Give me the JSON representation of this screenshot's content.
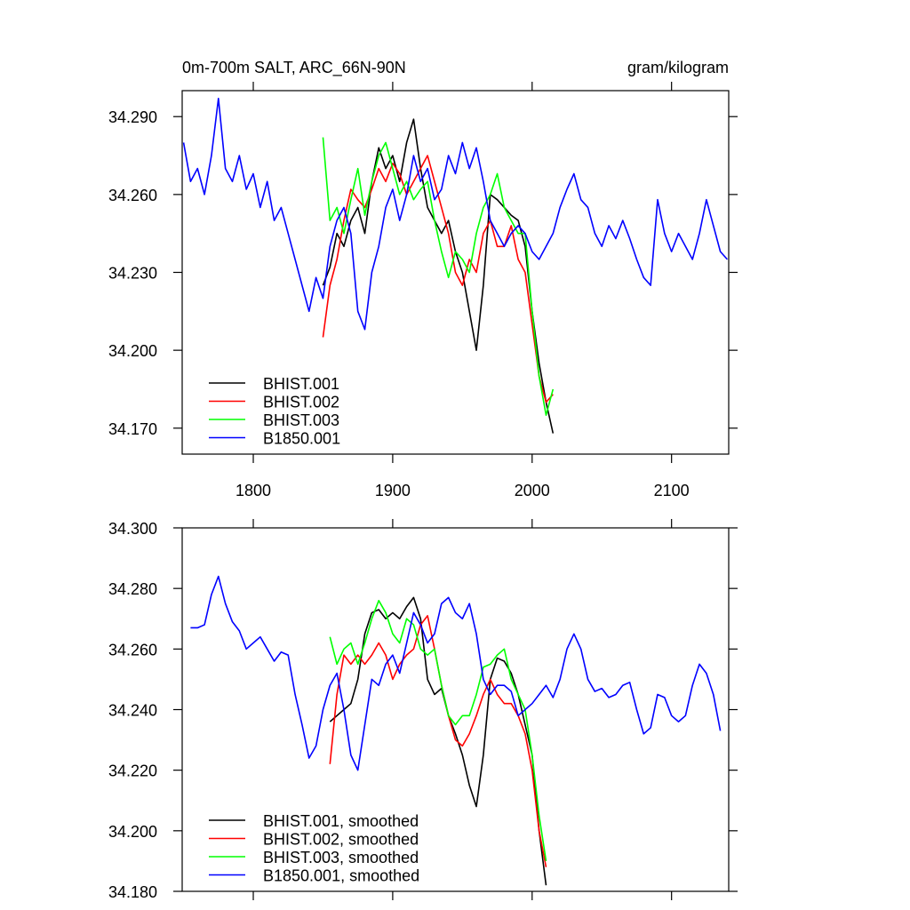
{
  "chart_data": [
    {
      "type": "line",
      "title": "0m-700m SALT, ARC_66N-90N",
      "units": "gram/kilogram",
      "xlim": [
        1749,
        2141
      ],
      "xticks": [
        1800,
        1900,
        2000,
        2100
      ],
      "show_xtick_labels": true,
      "ylim": [
        34.16,
        34.3
      ],
      "yticks": [
        {
          "value": 34.17,
          "label": "34.170"
        },
        {
          "value": 34.2,
          "label": "34.200"
        },
        {
          "value": 34.23,
          "label": "34.230"
        },
        {
          "value": 34.26,
          "label": "34.260"
        },
        {
          "value": 34.29,
          "label": "34.290"
        }
      ],
      "legend": "lower left",
      "series": [
        {
          "name": "BHIST.001",
          "color": "#000000",
          "x": [
            1850,
            1855,
            1860,
            1865,
            1870,
            1875,
            1880,
            1885,
            1890,
            1895,
            1900,
            1905,
            1910,
            1915,
            1920,
            1925,
            1930,
            1935,
            1940,
            1945,
            1950,
            1955,
            1960,
            1965,
            1970,
            1975,
            1980,
            1985,
            1990,
            1995,
            2000,
            2005,
            2010,
            2015
          ],
          "values": [
            34.225,
            34.232,
            34.245,
            34.24,
            34.25,
            34.255,
            34.245,
            34.265,
            34.278,
            34.27,
            34.275,
            34.265,
            34.28,
            34.289,
            34.27,
            34.255,
            34.25,
            34.245,
            34.25,
            34.238,
            34.23,
            34.215,
            34.2,
            34.225,
            34.26,
            34.258,
            34.255,
            34.252,
            34.25,
            34.24,
            34.215,
            34.195,
            34.18,
            34.168
          ]
        },
        {
          "name": "BHIST.002",
          "color": "#ff0000",
          "x": [
            1850,
            1855,
            1860,
            1865,
            1870,
            1875,
            1880,
            1885,
            1890,
            1895,
            1900,
            1905,
            1910,
            1915,
            1920,
            1925,
            1930,
            1935,
            1940,
            1945,
            1950,
            1955,
            1960,
            1965,
            1970,
            1975,
            1980,
            1985,
            1990,
            1995,
            2000,
            2005,
            2010,
            2015
          ],
          "values": [
            34.205,
            34.225,
            34.235,
            34.25,
            34.262,
            34.258,
            34.255,
            34.262,
            34.27,
            34.265,
            34.272,
            34.268,
            34.26,
            34.265,
            34.27,
            34.275,
            34.265,
            34.255,
            34.245,
            34.23,
            34.225,
            34.235,
            34.23,
            34.245,
            34.25,
            34.24,
            34.24,
            34.248,
            34.235,
            34.23,
            34.21,
            34.19,
            34.18,
            34.183
          ]
        },
        {
          "name": "BHIST.003",
          "color": "#00ff00",
          "x": [
            1850,
            1855,
            1860,
            1865,
            1870,
            1875,
            1880,
            1885,
            1890,
            1895,
            1900,
            1905,
            1910,
            1915,
            1920,
            1925,
            1930,
            1935,
            1940,
            1945,
            1950,
            1955,
            1960,
            1965,
            1970,
            1975,
            1980,
            1985,
            1990,
            1995,
            2000,
            2005,
            2010,
            2015
          ],
          "values": [
            34.282,
            34.25,
            34.255,
            34.245,
            34.258,
            34.27,
            34.252,
            34.265,
            34.275,
            34.28,
            34.27,
            34.26,
            34.265,
            34.258,
            34.262,
            34.265,
            34.25,
            34.238,
            34.228,
            34.238,
            34.235,
            34.23,
            34.245,
            34.255,
            34.26,
            34.268,
            34.255,
            34.25,
            34.245,
            34.245,
            34.215,
            34.19,
            34.175,
            34.185
          ]
        },
        {
          "name": "B1850.001",
          "color": "#0000ff",
          "x": [
            1750,
            1755,
            1760,
            1765,
            1770,
            1775,
            1780,
            1785,
            1790,
            1795,
            1800,
            1805,
            1810,
            1815,
            1820,
            1825,
            1830,
            1835,
            1840,
            1845,
            1850,
            1855,
            1860,
            1865,
            1870,
            1875,
            1880,
            1885,
            1890,
            1895,
            1900,
            1905,
            1910,
            1915,
            1920,
            1925,
            1930,
            1935,
            1940,
            1945,
            1950,
            1955,
            1960,
            1965,
            1970,
            1975,
            1980,
            1985,
            1990,
            1995,
            2000,
            2005,
            2010,
            2015,
            2020,
            2025,
            2030,
            2035,
            2040,
            2045,
            2050,
            2055,
            2060,
            2065,
            2070,
            2075,
            2080,
            2085,
            2090,
            2095,
            2100,
            2105,
            2110,
            2115,
            2120,
            2125,
            2130,
            2135,
            2140
          ],
          "values": [
            34.28,
            34.265,
            34.27,
            34.26,
            34.275,
            34.297,
            34.27,
            34.265,
            34.275,
            34.262,
            34.268,
            34.255,
            34.265,
            34.25,
            34.255,
            34.245,
            34.235,
            34.225,
            34.215,
            34.228,
            34.22,
            34.24,
            34.25,
            34.255,
            34.245,
            34.215,
            34.208,
            34.23,
            34.24,
            34.255,
            34.262,
            34.25,
            34.26,
            34.275,
            34.265,
            34.27,
            34.258,
            34.262,
            34.275,
            34.268,
            34.28,
            34.27,
            34.278,
            34.265,
            34.25,
            34.245,
            34.24,
            34.245,
            34.248,
            34.245,
            34.238,
            34.235,
            34.24,
            34.245,
            34.255,
            34.262,
            34.268,
            34.258,
            34.255,
            34.245,
            34.24,
            34.248,
            34.243,
            34.25,
            34.243,
            34.235,
            34.228,
            34.225,
            34.258,
            34.245,
            34.238,
            34.245,
            34.24,
            34.235,
            34.245,
            34.258,
            34.248,
            34.238,
            34.235
          ]
        }
      ]
    },
    {
      "type": "line",
      "xlim": [
        1749,
        2141
      ],
      "xticks": [
        1800,
        1900,
        2000,
        2100
      ],
      "show_xtick_labels": false,
      "ylim": [
        34.18,
        34.3
      ],
      "yticks": [
        {
          "value": 34.18,
          "label": "34.180"
        },
        {
          "value": 34.2,
          "label": "34.200"
        },
        {
          "value": 34.22,
          "label": "34.220"
        },
        {
          "value": 34.24,
          "label": "34.240"
        },
        {
          "value": 34.26,
          "label": "34.260"
        },
        {
          "value": 34.28,
          "label": "34.280"
        },
        {
          "value": 34.3,
          "label": "34.300"
        }
      ],
      "legend": "lower left",
      "series": [
        {
          "name": "BHIST.001, smoothed",
          "color": "#000000",
          "x": [
            1855,
            1860,
            1865,
            1870,
            1875,
            1880,
            1885,
            1890,
            1895,
            1900,
            1905,
            1910,
            1915,
            1920,
            1925,
            1930,
            1935,
            1940,
            1945,
            1950,
            1955,
            1960,
            1965,
            1970,
            1975,
            1980,
            1985,
            1990,
            1995,
            2000,
            2005,
            2010
          ],
          "values": [
            34.236,
            34.238,
            34.24,
            34.242,
            34.25,
            34.265,
            34.272,
            34.273,
            34.27,
            34.272,
            34.27,
            34.274,
            34.277,
            34.27,
            34.25,
            34.245,
            34.247,
            34.238,
            34.232,
            34.225,
            34.215,
            34.208,
            34.225,
            34.25,
            34.257,
            34.256,
            34.252,
            34.245,
            34.235,
            34.225,
            34.2,
            34.182
          ]
        },
        {
          "name": "BHIST.002, smoothed",
          "color": "#ff0000",
          "x": [
            1855,
            1860,
            1865,
            1870,
            1875,
            1880,
            1885,
            1890,
            1895,
            1900,
            1905,
            1910,
            1915,
            1920,
            1925,
            1930,
            1935,
            1940,
            1945,
            1950,
            1955,
            1960,
            1965,
            1970,
            1975,
            1980,
            1985,
            1990,
            1995,
            2000,
            2005,
            2010
          ],
          "values": [
            34.222,
            34.245,
            34.258,
            34.255,
            34.258,
            34.255,
            34.258,
            34.262,
            34.258,
            34.25,
            34.255,
            34.258,
            34.26,
            34.268,
            34.271,
            34.26,
            34.248,
            34.238,
            34.23,
            34.228,
            34.232,
            34.238,
            34.245,
            34.25,
            34.245,
            34.242,
            34.242,
            34.238,
            34.232,
            34.22,
            34.2,
            34.188
          ]
        },
        {
          "name": "BHIST.003, smoothed",
          "color": "#00ff00",
          "x": [
            1855,
            1860,
            1865,
            1870,
            1875,
            1880,
            1885,
            1890,
            1895,
            1900,
            1905,
            1910,
            1915,
            1920,
            1925,
            1930,
            1935,
            1940,
            1945,
            1950,
            1955,
            1960,
            1965,
            1970,
            1975,
            1980,
            1985,
            1990,
            1995,
            2000,
            2005,
            2010
          ],
          "values": [
            34.264,
            34.255,
            34.26,
            34.262,
            34.255,
            34.262,
            34.27,
            34.276,
            34.272,
            34.265,
            34.262,
            34.27,
            34.268,
            34.26,
            34.258,
            34.26,
            34.248,
            34.238,
            34.235,
            34.238,
            34.238,
            34.245,
            34.254,
            34.255,
            34.258,
            34.26,
            34.25,
            34.245,
            34.24,
            34.225,
            34.205,
            34.19
          ]
        },
        {
          "name": "B1850.001, smoothed",
          "color": "#0000ff",
          "x": [
            1755,
            1760,
            1765,
            1770,
            1775,
            1780,
            1785,
            1790,
            1795,
            1800,
            1805,
            1810,
            1815,
            1820,
            1825,
            1830,
            1835,
            1840,
            1845,
            1850,
            1855,
            1860,
            1865,
            1870,
            1875,
            1880,
            1885,
            1890,
            1895,
            1900,
            1905,
            1910,
            1915,
            1920,
            1925,
            1930,
            1935,
            1940,
            1945,
            1950,
            1955,
            1960,
            1965,
            1970,
            1975,
            1980,
            1985,
            1990,
            1995,
            2000,
            2005,
            2010,
            2015,
            2020,
            2025,
            2030,
            2035,
            2040,
            2045,
            2050,
            2055,
            2060,
            2065,
            2070,
            2075,
            2080,
            2085,
            2090,
            2095,
            2100,
            2105,
            2110,
            2115,
            2120,
            2125,
            2130,
            2135
          ],
          "values": [
            34.267,
            34.267,
            34.268,
            34.278,
            34.284,
            34.275,
            34.269,
            34.266,
            34.26,
            34.262,
            34.264,
            34.26,
            34.256,
            34.259,
            34.258,
            34.245,
            34.235,
            34.224,
            34.228,
            34.24,
            34.248,
            34.252,
            34.24,
            34.225,
            34.22,
            34.235,
            34.25,
            34.248,
            34.255,
            34.258,
            34.252,
            34.262,
            34.272,
            34.268,
            34.262,
            34.265,
            34.275,
            34.277,
            34.272,
            34.27,
            34.275,
            34.265,
            34.25,
            34.245,
            34.248,
            34.248,
            34.246,
            34.238,
            34.24,
            34.242,
            34.245,
            34.248,
            34.244,
            34.25,
            34.26,
            34.265,
            34.26,
            34.25,
            34.246,
            34.247,
            34.244,
            34.245,
            34.248,
            34.249,
            34.24,
            34.232,
            34.234,
            34.245,
            34.244,
            34.238,
            34.236,
            34.238,
            34.248,
            34.255,
            34.252,
            34.245,
            34.233
          ]
        }
      ]
    }
  ]
}
